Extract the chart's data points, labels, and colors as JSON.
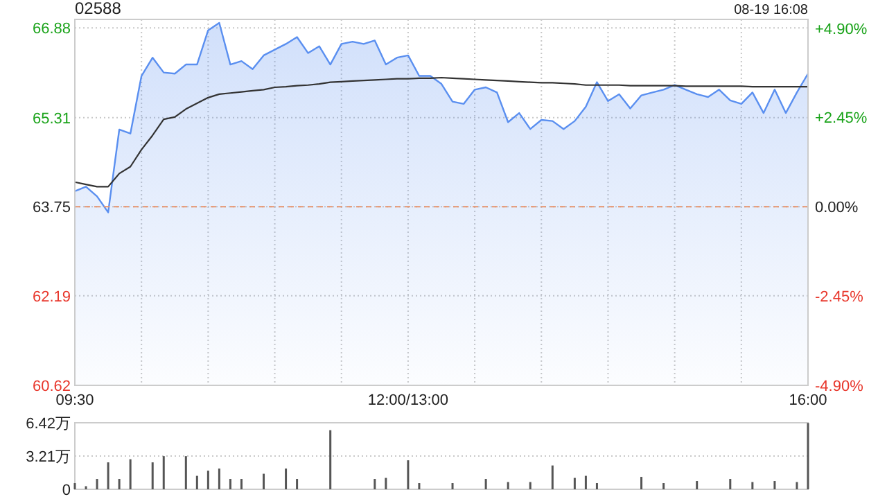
{
  "chart_data": [
    {
      "type": "line",
      "title": "02588",
      "annotations": [
        "08-19 16:08"
      ],
      "grid": true,
      "categories": [
        "09:30",
        null,
        null,
        null,
        null,
        null,
        null,
        null,
        null,
        null,
        null,
        null,
        null,
        null,
        null,
        null,
        null,
        null,
        null,
        null,
        null,
        null,
        null,
        null,
        null,
        null,
        null,
        null,
        null,
        null,
        "12:00/13:00",
        null,
        null,
        null,
        null,
        null,
        null,
        null,
        null,
        null,
        null,
        null,
        null,
        null,
        null,
        null,
        null,
        null,
        null,
        null,
        null,
        null,
        null,
        null,
        null,
        null,
        null,
        null,
        null,
        null,
        null,
        null,
        null,
        null,
        null,
        null,
        "16:00"
      ],
      "ylim": [
        60.62,
        67.03
      ],
      "yticks": [
        60.62,
        62.19,
        63.75,
        65.31,
        66.88
      ],
      "y2lim": [
        -4.9,
        5.14
      ],
      "y2ticks": [
        {
          "value": -4.9,
          "label": "-4.90%"
        },
        {
          "value": -2.45,
          "label": "-2.45%"
        },
        {
          "value": 0,
          "label": "0.00%"
        },
        {
          "value": 2.45,
          "label": "+2.45%"
        },
        {
          "value": 4.9,
          "label": "+4.90%"
        }
      ],
      "ref_lines": [
        {
          "axis": "y",
          "value": 63.75,
          "label": null,
          "color": "#e8956d",
          "line_style": "dashed"
        }
      ],
      "series": [
        {
          "type": "area",
          "color": "#5a8ff0",
          "values": [
            64.02,
            64.1,
            63.93,
            63.65,
            65.1,
            65.03,
            66.04,
            66.36,
            66.1,
            66.08,
            66.24,
            66.24,
            66.84,
            66.97,
            66.24,
            66.3,
            66.16,
            66.4,
            66.5,
            66.6,
            66.72,
            66.44,
            66.56,
            66.24,
            66.6,
            66.64,
            66.6,
            66.66,
            66.24,
            66.36,
            66.4,
            66.04,
            66.04,
            65.9,
            65.59,
            65.55,
            65.8,
            65.84,
            65.75,
            65.23,
            65.39,
            65.11,
            65.27,
            65.25,
            65.11,
            65.25,
            65.5,
            65.93,
            65.6,
            65.72,
            65.47,
            65.7,
            65.75,
            65.8,
            65.88,
            65.8,
            65.72,
            65.67,
            65.8,
            65.61,
            65.55,
            65.75,
            65.39,
            65.8,
            65.39,
            65.75,
            66.08
          ]
        },
        {
          "type": "line",
          "color": "#333333",
          "values": [
            64.18,
            64.14,
            64.1,
            64.1,
            64.33,
            64.45,
            64.75,
            65.0,
            65.28,
            65.32,
            65.46,
            65.56,
            65.66,
            65.72,
            65.74,
            65.76,
            65.78,
            65.8,
            65.84,
            65.85,
            65.87,
            65.88,
            65.9,
            65.93,
            65.94,
            65.95,
            65.96,
            65.97,
            65.98,
            65.99,
            65.99,
            66.0,
            66.0,
            66.01,
            66.0,
            65.99,
            65.98,
            65.97,
            65.96,
            65.95,
            65.94,
            65.93,
            65.92,
            65.92,
            65.91,
            65.9,
            65.88,
            65.88,
            65.88,
            65.88,
            65.87,
            65.87,
            65.87,
            65.87,
            65.87,
            65.86,
            65.86,
            65.86,
            65.86,
            65.86,
            65.86,
            65.85,
            65.85,
            65.85,
            65.85,
            65.85,
            65.85
          ]
        }
      ]
    },
    {
      "type": "bar",
      "color": "#555555",
      "tick_labels": "y",
      "grid": "y",
      "categories": [
        null,
        null,
        null,
        null,
        null,
        null,
        null,
        null,
        null,
        null,
        null,
        null,
        null,
        null,
        null,
        null,
        null,
        null,
        null,
        null,
        null,
        null,
        null,
        null,
        null,
        null,
        null,
        null,
        null,
        null,
        null,
        null,
        null,
        null,
        null,
        null,
        null,
        null,
        null,
        null,
        null,
        null,
        null,
        null,
        null,
        null,
        null,
        null,
        null,
        null,
        null,
        null,
        null,
        null,
        null,
        null,
        null,
        null,
        null,
        null,
        null,
        null,
        null,
        null,
        null,
        null,
        null
      ],
      "ylim": [
        0,
        6.42
      ],
      "yticks": [
        0,
        {
          "value": 3.21,
          "label": "3.21万"
        },
        {
          "value": 6.42,
          "label": "6.42万"
        }
      ],
      "values": [
        0.6,
        0.3,
        1.0,
        2.6,
        1.0,
        2.9,
        null,
        2.6,
        3.2,
        null,
        3.2,
        1.3,
        1.8,
        2.0,
        1.0,
        1.0,
        null,
        1.5,
        null,
        2.0,
        1.0,
        null,
        null,
        5.7,
        null,
        null,
        null,
        1.0,
        1.1,
        null,
        2.8,
        0.6,
        null,
        null,
        0.6,
        null,
        null,
        1.0,
        null,
        0.7,
        null,
        0.7,
        null,
        2.3,
        null,
        1.1,
        1.3,
        0.6,
        null,
        null,
        null,
        1.2,
        null,
        0.6,
        null,
        null,
        0.8,
        null,
        null,
        1.0,
        null,
        0.7,
        null,
        0.8,
        null,
        0.7,
        6.4
      ]
    }
  ]
}
